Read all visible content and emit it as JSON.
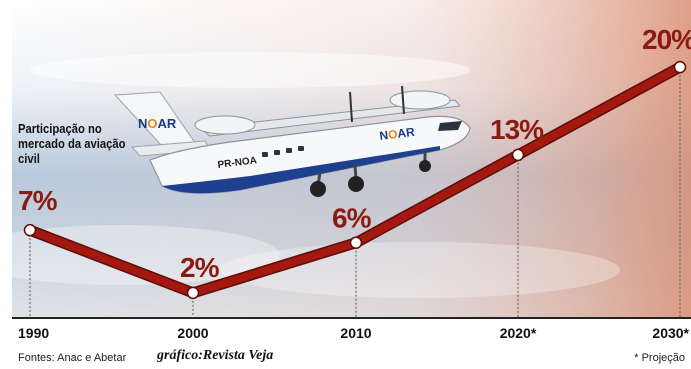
{
  "chart_data": {
    "type": "line",
    "title": "",
    "ylabel": "Participação no mercado da aviação civil",
    "x": [
      "1990",
      "2000",
      "2010",
      "2020*",
      "2030*"
    ],
    "values": [
      7,
      2,
      6,
      13,
      20
    ],
    "value_labels": [
      "7%",
      "2%",
      "6%",
      "13%",
      "20%"
    ],
    "ylim": [
      0,
      22
    ],
    "unit": "%",
    "grid": "dotted vertical drop lines",
    "line_color": "#a3180f",
    "background": "sky with airplane photo"
  },
  "image": {
    "aircraft_registration": "PR-NOA",
    "aircraft_logo": "NOAR"
  },
  "labels": {
    "participation": "Participação no mercado da aviação civil",
    "sources": "Fontes: Anac e Abetar",
    "credit": "gráfico:Revista Veja",
    "projection_note": "* Projeção"
  }
}
